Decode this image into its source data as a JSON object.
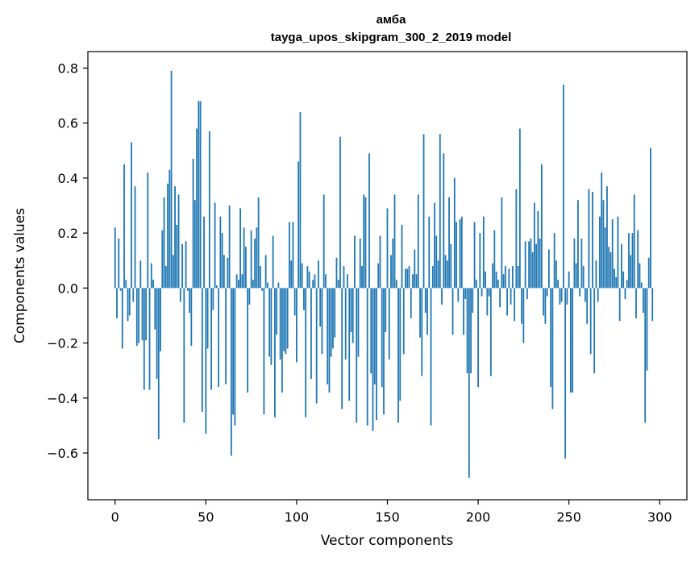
{
  "chart_data": {
    "type": "bar",
    "title": "амба",
    "subtitle": "tayga_upos_skipgram_300_2_2019 model",
    "xlabel": "Vector components",
    "ylabel": "Components values",
    "xlim": [
      -15,
      315
    ],
    "ylim": [
      -0.77,
      0.86
    ],
    "x_ticks": [
      0,
      50,
      100,
      150,
      200,
      250,
      300
    ],
    "y_ticks": [
      -0.6,
      -0.4,
      -0.2,
      0.0,
      0.2,
      0.4,
      0.6,
      0.8
    ],
    "y_tick_labels": [
      "−0.6",
      "−0.4",
      "−0.2",
      "0.0",
      "0.2",
      "0.4",
      "0.6",
      "0.8"
    ],
    "grid": false,
    "bar_color": "#1f77b4",
    "values": [
      0.22,
      -0.11,
      0.18,
      -0.01,
      -0.22,
      0.45,
      0.03,
      -0.12,
      -0.1,
      0.53,
      -0.05,
      0.37,
      -0.21,
      -0.2,
      0.1,
      -0.19,
      -0.37,
      -0.19,
      0.42,
      -0.37,
      0.09,
      0.03,
      -0.15,
      -0.33,
      -0.55,
      -0.23,
      0.21,
      0.33,
      0.08,
      0.38,
      0.43,
      0.79,
      0.12,
      0.37,
      0.23,
      0.34,
      -0.05,
      0.16,
      -0.49,
      0.17,
      -0.01,
      -0.09,
      -0.21,
      0.47,
      0.32,
      0.58,
      0.68,
      0.68,
      -0.45,
      0.26,
      -0.53,
      -0.22,
      0.57,
      -0.37,
      -0.08,
      0.31,
      0.01,
      -0.36,
      0.26,
      0.2,
      0.12,
      -0.35,
      0.11,
      0.3,
      -0.61,
      -0.46,
      -0.5,
      0.05,
      0.03,
      0.29,
      0.05,
      0.22,
      0.15,
      -0.38,
      -0.06,
      0.21,
      0.03,
      0.18,
      0.22,
      0.33,
      0.08,
      -0.01,
      -0.46,
      0.12,
      0.02,
      -0.25,
      -0.28,
      0.19,
      -0.47,
      -0.17,
      0.02,
      -0.26,
      -0.38,
      -0.23,
      -0.24,
      -0.22,
      0.24,
      0.1,
      0.24,
      -0.1,
      -0.27,
      0.46,
      0.64,
      0.09,
      -0.08,
      -0.47,
      0.08,
      0.06,
      -0.33,
      0.03,
      0.05,
      -0.42,
      0.1,
      -0.14,
      -0.24,
      0.34,
      0.05,
      -0.35,
      -0.38,
      -0.25,
      -0.22,
      -0.18,
      0.11,
      0.03,
      0.55,
      -0.44,
      0.08,
      -0.26,
      0.05,
      -0.41,
      -0.16,
      -0.2,
      0.19,
      -0.49,
      -0.25,
      0.18,
      0.08,
      0.34,
      0.33,
      -0.5,
      0.49,
      -0.31,
      -0.52,
      -0.35,
      -0.48,
      0.09,
      0.19,
      -0.36,
      -0.46,
      -0.16,
      0.29,
      -0.26,
      0.12,
      0.18,
      0.34,
      0.03,
      -0.49,
      -0.41,
      0.23,
      -0.24,
      0.07,
      0.07,
      0.08,
      -0.11,
      0.05,
      0.14,
      0.05,
      0.34,
      -0.18,
      -0.32,
      0.56,
      -0.09,
      -0.17,
      0.26,
      -0.5,
      0.08,
      0.31,
      0.19,
      0.1,
      0.56,
      -0.06,
      0.49,
      0.12,
      0.1,
      0.33,
      0.16,
      -0.17,
      0.4,
      0.24,
      -0.05,
      0.25,
      0.26,
      -0.17,
      -0.04,
      -0.31,
      -0.69,
      -0.31,
      -0.09,
      0.24,
      0.03,
      -0.36,
      0.2,
      -0.03,
      0.26,
      0.06,
      -0.1,
      -0.03,
      -0.32,
      0.09,
      0.21,
      0.06,
      0.03,
      -0.07,
      0.33,
      0.05,
      0.08,
      -0.1,
      0.07,
      -0.06,
      0.08,
      -0.12,
      0.36,
      0.08,
      0.58,
      -0.13,
      -0.2,
      0.17,
      -0.04,
      0.17,
      0.18,
      0.13,
      0.31,
      0.16,
      0.28,
      0.18,
      0.45,
      -0.1,
      -0.13,
      -0.03,
      0.14,
      -0.36,
      -0.44,
      0.2,
      0.1,
      0.03,
      -0.06,
      -0.05,
      0.74,
      -0.62,
      -0.06,
      0.06,
      -0.38,
      -0.38,
      0.18,
      0.09,
      0.32,
      -0.03,
      0.18,
      0.08,
      -0.05,
      -0.13,
      0.36,
      -0.24,
      0.35,
      -0.31,
      0.1,
      -0.05,
      0.26,
      0.42,
      0.32,
      0.22,
      0.37,
      0.15,
      0.13,
      0.25,
      0.07,
      0.04,
      0.26,
      -0.12,
      0.16,
      0.06,
      -0.04,
      0.03,
      0.2,
      0.12,
      0.2,
      0.34,
      -0.11,
      0.21,
      0.09,
      0.02,
      -0.09,
      -0.49,
      -0.3,
      0.11,
      0.51,
      -0.12
    ]
  }
}
